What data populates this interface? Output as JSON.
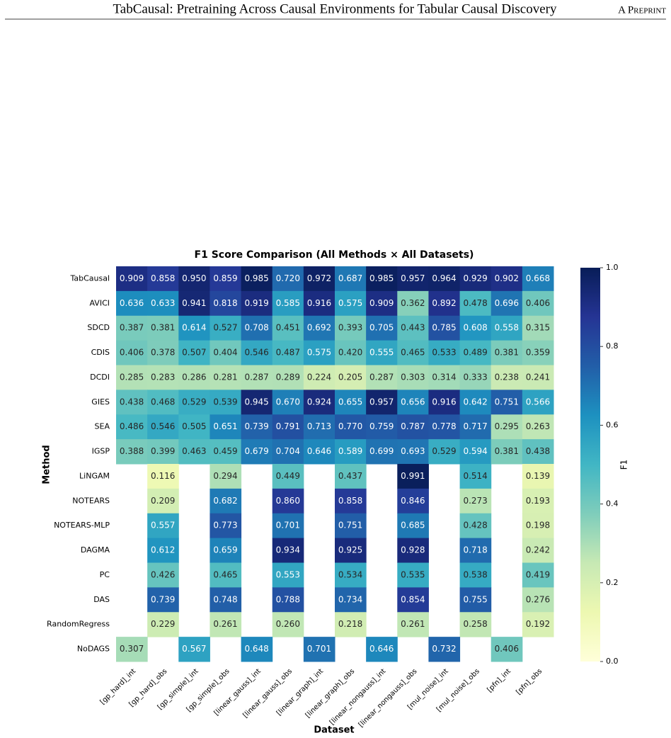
{
  "header": {
    "title": "TabCausal: Pretraining Across Causal Environments for Tabular Causal Discovery",
    "right": "A Preprint"
  },
  "chart_data": {
    "type": "heatmap",
    "title": "F1 Score Comparison (All Methods × All Datasets)",
    "x_label": "Dataset",
    "y_label": "Method",
    "colormap": "YlGnBu",
    "columns": [
      "[gp_hard]_int",
      "[gp_hard]_obs",
      "[gp_simple]_int",
      "[gp_simple]_obs",
      "[linear_gauss]_int",
      "[linear_gauss]_obs",
      "[linear_graph]_int",
      "[linear_graph]_obs",
      "[linear_nongauss]_int",
      "[linear_nongauss]_obs",
      "[mul_noise]_int",
      "[mul_noise]_obs",
      "[pfn]_int",
      "[pfn]_obs"
    ],
    "rows": [
      "TabCausal",
      "AVICI",
      "SDCD",
      "CDIS",
      "DCDI",
      "GIES",
      "SEA",
      "IGSP",
      "LiNGAM",
      "NOTEARS",
      "NOTEARS-MLP",
      "DAGMA",
      "PC",
      "DAS",
      "RandomRegress",
      "NoDAGS"
    ],
    "values": [
      [
        0.909,
        0.858,
        0.95,
        0.859,
        0.985,
        0.72,
        0.972,
        0.687,
        0.985,
        0.957,
        0.964,
        0.929,
        0.902,
        0.668
      ],
      [
        0.636,
        0.633,
        0.941,
        0.818,
        0.919,
        0.585,
        0.916,
        0.575,
        0.909,
        0.362,
        0.892,
        0.478,
        0.696,
        0.406
      ],
      [
        0.387,
        0.381,
        0.614,
        0.527,
        0.708,
        0.451,
        0.692,
        0.393,
        0.705,
        0.443,
        0.785,
        0.608,
        0.558,
        0.315
      ],
      [
        0.406,
        0.378,
        0.507,
        0.404,
        0.546,
        0.487,
        0.575,
        0.42,
        0.555,
        0.465,
        0.533,
        0.489,
        0.381,
        0.359
      ],
      [
        0.285,
        0.283,
        0.286,
        0.281,
        0.287,
        0.289,
        0.224,
        0.205,
        0.287,
        0.303,
        0.314,
        0.333,
        0.238,
        0.241
      ],
      [
        0.438,
        0.468,
        0.529,
        0.539,
        0.945,
        0.67,
        0.924,
        0.655,
        0.957,
        0.656,
        0.916,
        0.642,
        0.751,
        0.566
      ],
      [
        0.486,
        0.546,
        0.505,
        0.651,
        0.739,
        0.791,
        0.713,
        0.77,
        0.759,
        0.787,
        0.778,
        0.717,
        0.295,
        0.263
      ],
      [
        0.388,
        0.399,
        0.463,
        0.459,
        0.679,
        0.704,
        0.646,
        0.589,
        0.699,
        0.693,
        0.529,
        0.594,
        0.381,
        0.438
      ],
      [
        null,
        0.116,
        null,
        0.294,
        null,
        0.449,
        null,
        0.437,
        null,
        0.991,
        null,
        0.514,
        null,
        0.139
      ],
      [
        null,
        0.209,
        null,
        0.682,
        null,
        0.86,
        null,
        0.858,
        null,
        0.846,
        null,
        0.273,
        null,
        0.193
      ],
      [
        null,
        0.557,
        null,
        0.773,
        null,
        0.701,
        null,
        0.751,
        null,
        0.685,
        null,
        0.428,
        null,
        0.198
      ],
      [
        null,
        0.612,
        null,
        0.659,
        null,
        0.934,
        null,
        0.925,
        null,
        0.928,
        null,
        0.718,
        null,
        0.242
      ],
      [
        null,
        0.426,
        null,
        0.465,
        null,
        0.553,
        null,
        0.534,
        null,
        0.535,
        null,
        0.538,
        null,
        0.419
      ],
      [
        null,
        0.739,
        null,
        0.748,
        null,
        0.788,
        null,
        0.734,
        null,
        0.854,
        null,
        0.755,
        null,
        0.276
      ],
      [
        null,
        0.229,
        null,
        0.261,
        null,
        0.26,
        null,
        0.218,
        null,
        0.261,
        null,
        0.258,
        null,
        0.192
      ],
      [
        0.307,
        null,
        0.567,
        null,
        0.648,
        null,
        0.701,
        null,
        0.646,
        null,
        0.732,
        null,
        0.406,
        null
      ]
    ],
    "value_labels": [
      [
        "0.909",
        "0.858",
        "0.950",
        "0.859",
        "0.985",
        "0.720",
        "0.972",
        "0.687",
        "0.985",
        "0.957",
        "0.964",
        "0.929",
        "0.902",
        "0.668"
      ],
      [
        "0.636",
        "0.633",
        "0.941",
        "0.818",
        "0.919",
        "0.585",
        "0.916",
        "0.575",
        "0.909",
        "0.362",
        "0.892",
        "0.478",
        "0.696",
        "0.406"
      ],
      [
        "0.387",
        "0.381",
        "0.614",
        "0.527",
        "0.708",
        "0.451",
        "0.692",
        "0.393",
        "0.705",
        "0.443",
        "0.785",
        "0.608",
        "0.558",
        "0.315"
      ],
      [
        "0.406",
        "0.378",
        "0.507",
        "0.404",
        "0.546",
        "0.487",
        "0.575",
        "0.420",
        "0.555",
        "0.465",
        "0.533",
        "0.489",
        "0.381",
        "0.359"
      ],
      [
        "0.285",
        "0.283",
        "0.286",
        "0.281",
        "0.287",
        "0.289",
        "0.224",
        "0.205",
        "0.287",
        "0.303",
        "0.314",
        "0.333",
        "0.238",
        "0.241"
      ],
      [
        "0.438",
        "0.468",
        "0.529",
        "0.539",
        "0.945",
        "0.670",
        "0.924",
        "0.655",
        "0.957",
        "0.656",
        "0.916",
        "0.642",
        "0.751",
        "0.566"
      ],
      [
        "0.486",
        "0.546",
        "0.505",
        "0.651",
        "0.739",
        "0.791",
        "0.713",
        "0.770",
        "0.759",
        "0.787",
        "0.778",
        "0.717",
        "0.295",
        "0.263"
      ],
      [
        "0.388",
        "0.399",
        "0.463",
        "0.459",
        "0.679",
        "0.704",
        "0.646",
        "0.589",
        "0.699",
        "0.693",
        "0.529",
        "0.594",
        "0.381",
        "0.438"
      ],
      [
        null,
        "0.116",
        null,
        "0.294",
        null,
        "0.449",
        null,
        "0.437",
        null,
        "0.991",
        null,
        "0.514",
        null,
        "0.139"
      ],
      [
        null,
        "0.209",
        null,
        "0.682",
        null,
        "0.860",
        null,
        "0.858",
        null,
        "0.846",
        null,
        "0.273",
        null,
        "0.193"
      ],
      [
        null,
        "0.557",
        null,
        "0.773",
        null,
        "0.701",
        null,
        "0.751",
        null,
        "0.685",
        null,
        "0.428",
        null,
        "0.198"
      ],
      [
        null,
        "0.612",
        null,
        "0.659",
        null,
        "0.934",
        null,
        "0.925",
        null,
        "0.928",
        null,
        "0.718",
        null,
        "0.242"
      ],
      [
        null,
        "0.426",
        null,
        "0.465",
        null,
        "0.553",
        null,
        "0.534",
        null,
        "0.535",
        null,
        "0.538",
        null,
        "0.419"
      ],
      [
        null,
        "0.739",
        null,
        "0.748",
        null,
        "0.788",
        null,
        "0.734",
        null,
        "0.854",
        null,
        "0.755",
        null,
        "0.276"
      ],
      [
        null,
        "0.229",
        null,
        "0.261",
        null,
        "0.260",
        null,
        "0.218",
        null,
        "0.261",
        null,
        "0.258",
        null,
        "0.192"
      ],
      [
        "0.307",
        null,
        "0.567",
        null,
        "0.648",
        null,
        "0.701",
        null,
        "0.646",
        null,
        "0.732",
        null,
        "0.406",
        null
      ]
    ],
    "colorbar": {
      "label": "F1",
      "lim": [
        0,
        1
      ],
      "ticks": [
        {
          "value": 0,
          "label": "0.0"
        },
        0.2,
        0.4,
        0.6,
        0.8,
        {
          "value": 1,
          "label": "1.0"
        }
      ]
    }
  }
}
